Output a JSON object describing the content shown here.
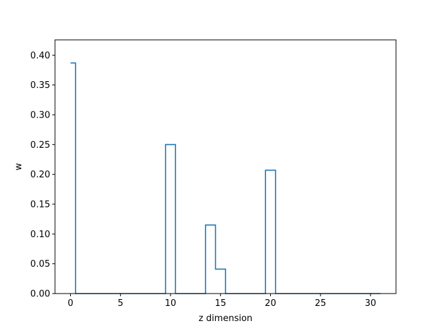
{
  "chart_data": {
    "type": "line",
    "drawstyle": "steps-mid",
    "xlabel": "z dimension",
    "ylabel": "w",
    "xlim": [
      -1.55,
      32.55
    ],
    "ylim": [
      0,
      0.4257
    ],
    "xticks": [
      0,
      5,
      10,
      15,
      20,
      25,
      30
    ],
    "xtick_labels": [
      "0",
      "5",
      "10",
      "15",
      "20",
      "25",
      "30"
    ],
    "yticks": [
      0.0,
      0.05,
      0.1,
      0.15,
      0.2,
      0.25,
      0.3,
      0.35,
      0.4
    ],
    "ytick_labels": [
      "0.00",
      "0.05",
      "0.10",
      "0.15",
      "0.20",
      "0.25",
      "0.30",
      "0.35",
      "0.40"
    ],
    "grid": false,
    "color": "#1f77b4",
    "series": [
      {
        "x": [
          0,
          1,
          2,
          3,
          4,
          5,
          6,
          7,
          8,
          9,
          10,
          11,
          12,
          13,
          14,
          15,
          16,
          17,
          18,
          19,
          20,
          21,
          22,
          23,
          24,
          25,
          26,
          27,
          28,
          29,
          30,
          31
        ],
        "values": [
          0.387,
          0,
          0,
          0,
          0,
          0,
          0,
          0,
          0,
          0,
          0.25,
          0,
          0,
          0,
          0.115,
          0.041,
          0,
          0,
          0,
          0,
          0.207,
          0,
          0,
          0,
          0,
          0,
          0,
          0,
          0,
          0,
          0,
          0
        ]
      }
    ]
  }
}
